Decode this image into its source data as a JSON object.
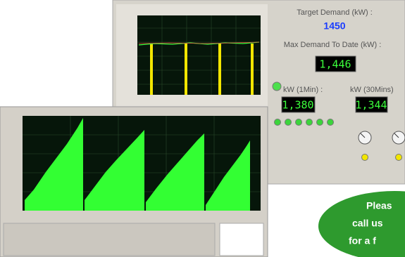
{
  "panel": {
    "target_label": "Target Demand (kW) :",
    "target_value": "1450",
    "max_label": "Max Demand To Date (kW) :",
    "max_value": "1,446",
    "one_min_label": "kW (1Min) :",
    "one_min_value": "1,380",
    "thirty_min_label": "kW (30Mins)",
    "thirty_min_value": "1,344"
  },
  "callout": {
    "lines": [
      "Pleas",
      "call us",
      "for a f"
    ]
  }
}
